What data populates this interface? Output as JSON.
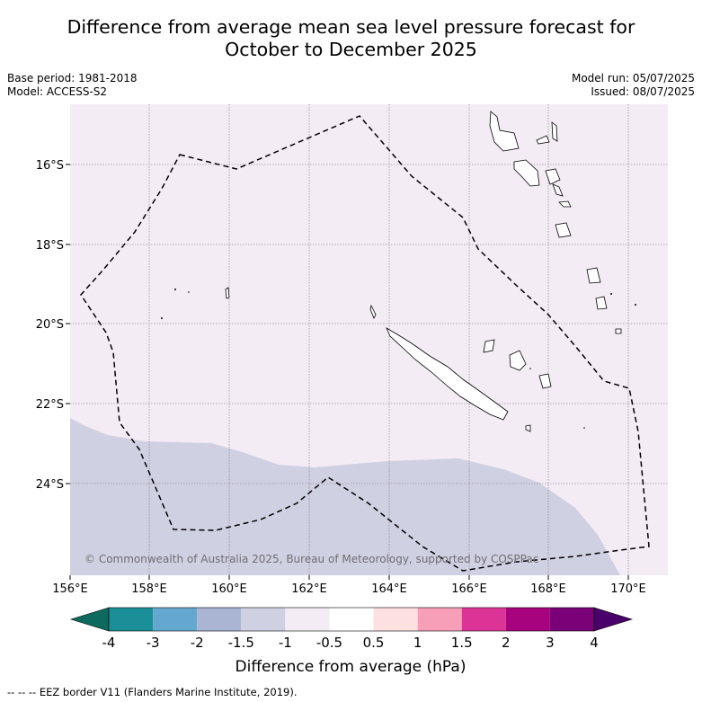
{
  "title": {
    "line1": "Difference from average mean sea level pressure forecast for",
    "line2": "October to December 2025"
  },
  "meta": {
    "base_period": "Base period: 1981-2018",
    "model": "Model: ACCESS-S2",
    "model_run": "Model run: 05/07/2025",
    "issued": "Issued: 08/07/2025"
  },
  "map": {
    "lon_ticks": [
      "156°E",
      "158°E",
      "160°E",
      "162°E",
      "164°E",
      "166°E",
      "168°E",
      "170°E"
    ],
    "lat_ticks": [
      "16°S",
      "18°S",
      "20°S",
      "22°S",
      "24°S"
    ],
    "copyright": "© Commonwealth of Australia 2025, Bureau of Meteorology, supported by COSPPac",
    "background_color": "#f4ecf5",
    "negative_region_color": "#d0d0e3"
  },
  "colorbar": {
    "label": "Difference from average (hPa)",
    "tick_labels": [
      "-4",
      "-3",
      "-2",
      "-1.5",
      "-1",
      "-0.5",
      "0.5",
      "1",
      "1.5",
      "2",
      "3",
      "4"
    ],
    "colors": [
      "#0e6a5e",
      "#1b8f98",
      "#64a8d0",
      "#aab5d4",
      "#d0d0e3",
      "#f4ecf5",
      "#ffffff",
      "#fde0e0",
      "#f79fb9",
      "#dc3397",
      "#a8037f",
      "#7a0177",
      "#4a006a"
    ]
  },
  "footnote": "--  --  -- EEZ border V11 (Flanders Marine Institute, 2019)."
}
